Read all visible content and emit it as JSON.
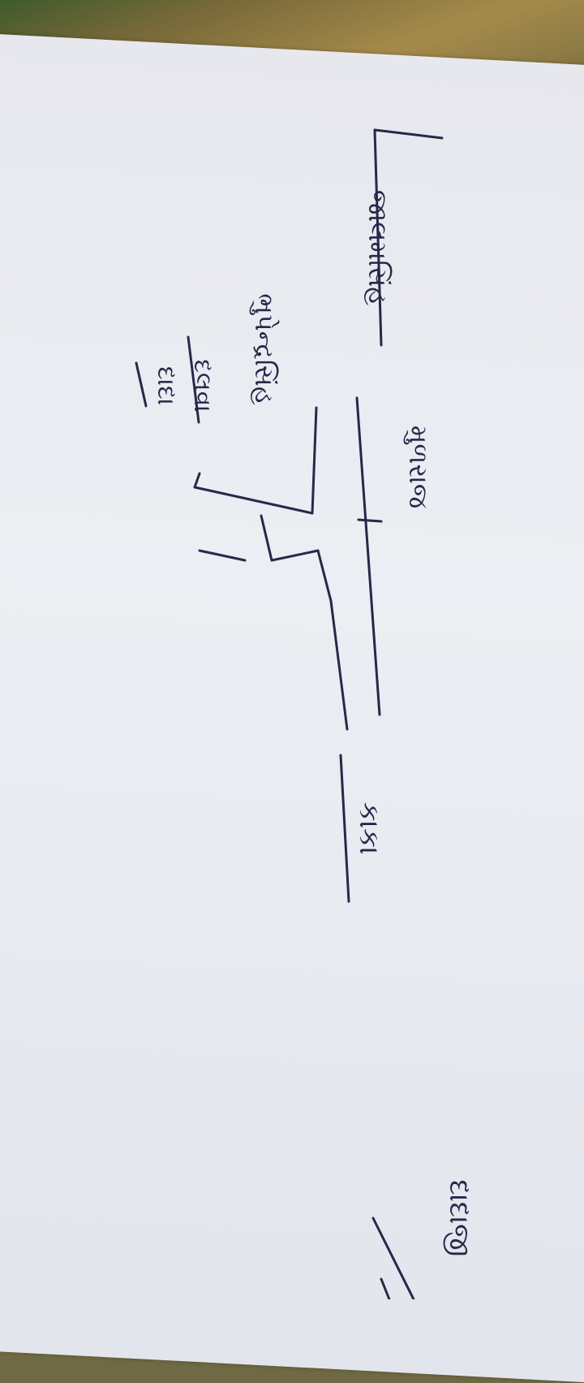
{
  "document": {
    "orientation": "rotated-90-clockwise",
    "ink_color": "#27284a",
    "labels": {
      "root_left": "કાકા",
      "bottom_left": "દાદાજી",
      "main_branch": "મુળરાજ",
      "branch_a": "દાદા",
      "branch_b": "દલવા",
      "branch_c": "ભુપેન્દ્રસિંહ",
      "branch_d": "જાલમસિંહ"
    }
  }
}
